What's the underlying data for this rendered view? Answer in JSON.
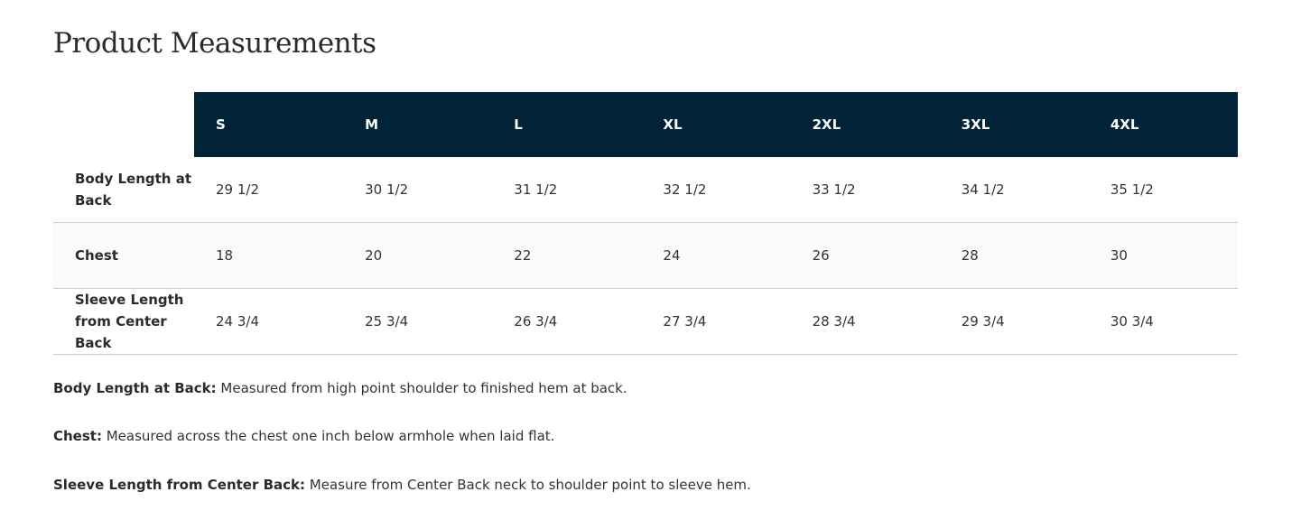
{
  "title": "Product Measurements",
  "table": {
    "sizes": [
      "S",
      "M",
      "L",
      "XL",
      "2XL",
      "3XL",
      "4XL"
    ],
    "rows": [
      {
        "label": "Body Length at Back",
        "values": [
          "29 1/2",
          "30 1/2",
          "31 1/2",
          "32 1/2",
          "33 1/2",
          "34 1/2",
          "35 1/2"
        ]
      },
      {
        "label": "Chest",
        "values": [
          "18",
          "20",
          "22",
          "24",
          "26",
          "28",
          "30"
        ]
      },
      {
        "label": "Sleeve Length from Center Back",
        "values": [
          "24 3/4",
          "25 3/4",
          "26 3/4",
          "27 3/4",
          "28 3/4",
          "29 3/4",
          "30 3/4"
        ]
      }
    ]
  },
  "notes": [
    {
      "term": "Body Length at Back:",
      "text": " Measured from high point shoulder to finished hem at back."
    },
    {
      "term": "Chest:",
      "text": " Measured across the chest one inch below armhole when laid flat."
    },
    {
      "term": "Sleeve Length from Center Back:",
      "text": " Measure from Center Back neck to shoulder point to sleeve hem."
    }
  ],
  "colors": {
    "header_bg": "#002337",
    "header_text": "#ffffff"
  }
}
